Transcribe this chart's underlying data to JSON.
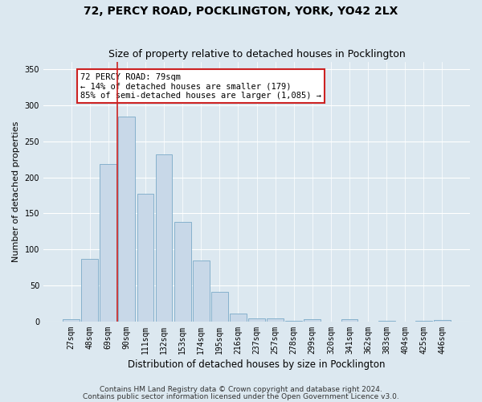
{
  "title1": "72, PERCY ROAD, POCKLINGTON, YORK, YO42 2LX",
  "title2": "Size of property relative to detached houses in Pocklington",
  "xlabel": "Distribution of detached houses by size in Pocklington",
  "ylabel": "Number of detached properties",
  "categories": [
    "27sqm",
    "48sqm",
    "69sqm",
    "90sqm",
    "111sqm",
    "132sqm",
    "153sqm",
    "174sqm",
    "195sqm",
    "216sqm",
    "237sqm",
    "257sqm",
    "278sqm",
    "299sqm",
    "320sqm",
    "341sqm",
    "362sqm",
    "383sqm",
    "404sqm",
    "425sqm",
    "446sqm"
  ],
  "values": [
    3,
    87,
    219,
    284,
    177,
    232,
    138,
    85,
    41,
    11,
    4,
    4,
    1,
    3,
    0,
    3,
    0,
    1,
    0,
    1,
    2
  ],
  "bar_color": "#c8d8e8",
  "bar_edge_color": "#7aaac8",
  "vline_x_index": 2.5,
  "vline_color": "#cc2222",
  "annotation_text": "72 PERCY ROAD: 79sqm\n← 14% of detached houses are smaller (179)\n85% of semi-detached houses are larger (1,085) →",
  "annotation_box_facecolor": "#ffffff",
  "annotation_box_edgecolor": "#cc2222",
  "ylim": [
    0,
    360
  ],
  "yticks": [
    0,
    50,
    100,
    150,
    200,
    250,
    300,
    350
  ],
  "background_color": "#dce8f0",
  "plot_bg_color": "#dce8f0",
  "grid_color": "#ffffff",
  "footer1": "Contains HM Land Registry data © Crown copyright and database right 2024.",
  "footer2": "Contains public sector information licensed under the Open Government Licence v3.0.",
  "title1_fontsize": 10,
  "title2_fontsize": 9,
  "xlabel_fontsize": 8.5,
  "ylabel_fontsize": 8,
  "tick_fontsize": 7,
  "annotation_fontsize": 7.5,
  "footer_fontsize": 6.5
}
